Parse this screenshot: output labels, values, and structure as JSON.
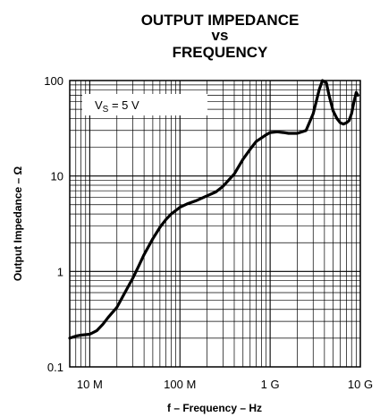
{
  "chart_data": {
    "type": "line",
    "title_lines": [
      "OUTPUT IMPEDANCE",
      "vs",
      "FREQUENCY"
    ],
    "xlabel": "f – Frequency – Hz",
    "ylabel": "Output Impedance – Ω",
    "x_scale": "log",
    "y_scale": "log",
    "xlim": [
      6000000,
      10000000000
    ],
    "ylim": [
      0.1,
      100
    ],
    "grid": true,
    "x_ticks": [
      {
        "value": 10000000,
        "label": "10 M"
      },
      {
        "value": 100000000,
        "label": "100 M"
      },
      {
        "value": 1000000000,
        "label": "1 G"
      },
      {
        "value": 10000000000,
        "label": "10 G"
      }
    ],
    "y_ticks": [
      {
        "value": 0.1,
        "label": "0.1"
      },
      {
        "value": 1,
        "label": "1"
      },
      {
        "value": 10,
        "label": "10"
      },
      {
        "value": 100,
        "label": "100"
      }
    ],
    "legend": {
      "placement": "top-left",
      "text_main": "V",
      "text_sub": "S",
      "text_tail": " = 5 V"
    },
    "series": [
      {
        "color": "#000000",
        "x": [
          6000000,
          7000000,
          8000000,
          10000000,
          12000000,
          14000000,
          16000000,
          20000000,
          25000000,
          30000000,
          35000000,
          40000000,
          50000000,
          60000000,
          70000000,
          80000000,
          100000000,
          120000000,
          150000000,
          200000000,
          250000000,
          300000000,
          400000000,
          500000000,
          600000000,
          700000000,
          800000000,
          900000000,
          1000000000,
          1200000000,
          1400000000,
          1600000000,
          2000000000,
          2500000000,
          3000000000,
          3500000000,
          3800000000,
          4200000000,
          4500000000,
          5000000000,
          5500000000,
          6000000000,
          6500000000,
          7000000000,
          7500000000,
          8000000000,
          8500000000,
          9000000000,
          9400000000
        ],
        "y": [
          0.2,
          0.21,
          0.215,
          0.22,
          0.24,
          0.28,
          0.33,
          0.42,
          0.62,
          0.85,
          1.15,
          1.5,
          2.2,
          2.9,
          3.5,
          4.0,
          4.7,
          5.1,
          5.5,
          6.2,
          6.8,
          7.8,
          10.5,
          15,
          19,
          23,
          25,
          27,
          28.5,
          29,
          28.5,
          28,
          28,
          30,
          45,
          80,
          100,
          95,
          70,
          48,
          40,
          36,
          35,
          36,
          38,
          45,
          60,
          75,
          70
        ]
      }
    ]
  }
}
